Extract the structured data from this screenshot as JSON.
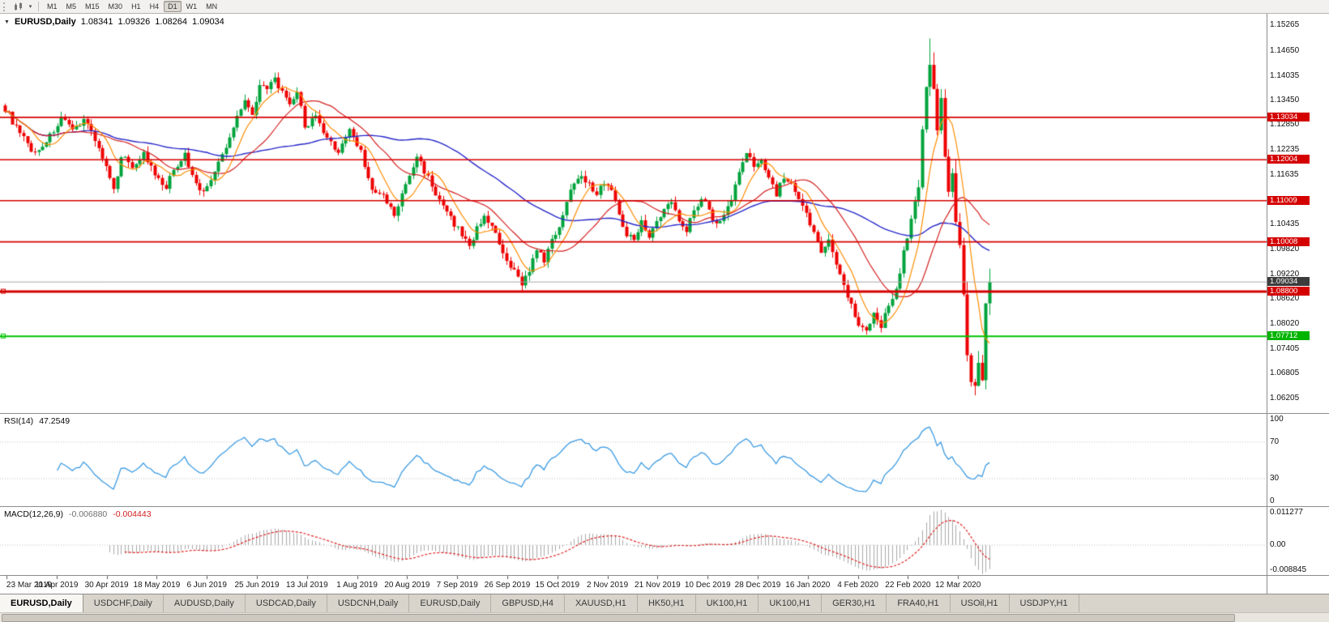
{
  "toolbar": {
    "timeframes": [
      {
        "label": "M1",
        "active": false
      },
      {
        "label": "M5",
        "active": false
      },
      {
        "label": "M15",
        "active": false
      },
      {
        "label": "M30",
        "active": false
      },
      {
        "label": "H1",
        "active": false
      },
      {
        "label": "H4",
        "active": false
      },
      {
        "label": "D1",
        "active": true
      },
      {
        "label": "W1",
        "active": false
      },
      {
        "label": "MN",
        "active": false
      }
    ]
  },
  "chart": {
    "symbol": "EURUSD,Daily",
    "ohlc": {
      "open": "1.08341",
      "high": "1.09326",
      "low": "1.08264",
      "close": "1.09034"
    }
  },
  "price_axis": {
    "labels": [
      "1.15265",
      "1.14650",
      "1.14035",
      "1.13450",
      "1.12850",
      "1.12235",
      "1.11635",
      "1.10435",
      "1.09820",
      "1.09220",
      "1.08620",
      "1.08020",
      "1.07405",
      "1.06805",
      "1.06205"
    ],
    "range": {
      "max": 1.1555,
      "min": 1.0585
    }
  },
  "levels": {
    "resistance": [
      {
        "label": "1.13034",
        "price": 1.13034,
        "width": 1.6
      },
      {
        "label": "1.12004",
        "price": 1.12004,
        "width": 1.6
      },
      {
        "label": "1.11009",
        "price": 1.11009,
        "width": 1.6
      },
      {
        "label": "1.10008",
        "price": 1.10008,
        "width": 1.6
      },
      {
        "label": "1.08800",
        "price": 1.088,
        "width": 3
      }
    ],
    "support": {
      "label": "1.07712",
      "price": 1.07712,
      "width": 2
    },
    "current": {
      "label": "1.09034",
      "price": 1.09034
    }
  },
  "rsi": {
    "name": "RSI(14)",
    "value": "47.2549",
    "scale": [
      {
        "label": "100",
        "value": 100
      },
      {
        "label": "70",
        "value": 70
      },
      {
        "label": "30",
        "value": 30
      },
      {
        "label": "0",
        "value": 0
      }
    ],
    "guides": [
      70,
      30
    ]
  },
  "macd": {
    "name": "MACD(12,26,9)",
    "value_main": "-0.006880",
    "value_signal": "-0.004443",
    "scale": [
      {
        "label": "0.011277",
        "value": 0.011277
      },
      {
        "label": "0.00",
        "value": 0
      },
      {
        "label": "-0.008845",
        "value": -0.008845
      }
    ],
    "range": {
      "max": 0.0118,
      "min": -0.0095
    }
  },
  "time_axis": {
    "labels": [
      "23 Mar 2019",
      "11 Apr 2019",
      "30 Apr 2019",
      "18 May 2019",
      "6 Jun 2019",
      "25 Jun 2019",
      "13 Jul 2019",
      "1 Aug 2019",
      "20 Aug 2019",
      "7 Sep 2019",
      "26 Sep 2019",
      "15 Oct 2019",
      "2 Nov 2019",
      "21 Nov 2019",
      "10 Dec 2019",
      "28 Dec 2019",
      "16 Jan 2020",
      "4 Feb 2020",
      "22 Feb 2020",
      "12 Mar 2020"
    ]
  },
  "tabs": [
    {
      "label": "EURUSD,Daily",
      "active": true
    },
    {
      "label": "USDCHF,Daily",
      "active": false
    },
    {
      "label": "AUDUSD,Daily",
      "active": false
    },
    {
      "label": "USDCAD,Daily",
      "active": false
    },
    {
      "label": "USDCNH,Daily",
      "active": false
    },
    {
      "label": "EURUSD,Daily",
      "active": false
    },
    {
      "label": "GBPUSD,H4",
      "active": false
    },
    {
      "label": "XAUUSD,H1",
      "active": false
    },
    {
      "label": "HK50,H1",
      "active": false
    },
    {
      "label": "UK100,H1",
      "active": false
    },
    {
      "label": "UK100,H1",
      "active": false
    },
    {
      "label": "GER30,H1",
      "active": false
    },
    {
      "label": "FRA40,H1",
      "active": false
    },
    {
      "label": "USOil,H1",
      "active": false
    },
    {
      "label": "USDJPY,H1",
      "active": false
    }
  ],
  "colors": {
    "up_candle": "#00a33c",
    "down_candle": "#ee0000",
    "ma_fast": "#ff8c00",
    "ma_mid": "#d42020",
    "ma_slow": "#2626c9",
    "level_red": "#d40000",
    "level_green": "#00c400",
    "current_line": "#a8a8a8",
    "rsi_line": "#3b9ae1",
    "macd_hist": "#a8a8a8",
    "macd_signal": "#e02020",
    "guide_dotted": "#c0c0c0"
  },
  "chart_data": {
    "type": "candlestick",
    "symbol": "EURUSD",
    "timeframe": "Daily",
    "candle_count": 264,
    "last_ohlc": {
      "open": 1.08341,
      "high": 1.09326,
      "low": 1.08264,
      "close": 1.09034
    },
    "close_anchors": [
      [
        0,
        1.1325
      ],
      [
        4,
        1.1262
      ],
      [
        8,
        1.1215
      ],
      [
        12,
        1.1258
      ],
      [
        15,
        1.13
      ],
      [
        18,
        1.1268
      ],
      [
        21,
        1.1302
      ],
      [
        24,
        1.1252
      ],
      [
        27,
        1.118
      ],
      [
        29,
        1.1122
      ],
      [
        31,
        1.1212
      ],
      [
        34,
        1.1185
      ],
      [
        37,
        1.1215
      ],
      [
        40,
        1.1162
      ],
      [
        43,
        1.1128
      ],
      [
        45,
        1.118
      ],
      [
        48,
        1.1212
      ],
      [
        50,
        1.1162
      ],
      [
        53,
        1.1118
      ],
      [
        56,
        1.1172
      ],
      [
        58,
        1.121
      ],
      [
        60,
        1.1252
      ],
      [
        62,
        1.1308
      ],
      [
        64,
        1.1348
      ],
      [
        66,
        1.1308
      ],
      [
        68,
        1.1388
      ],
      [
        70,
        1.1368
      ],
      [
        72,
        1.1398
      ],
      [
        74,
        1.1362
      ],
      [
        76,
        1.1328
      ],
      [
        78,
        1.1368
      ],
      [
        80,
        1.1282
      ],
      [
        83,
        1.1302
      ],
      [
        86,
        1.1248
      ],
      [
        89,
        1.1222
      ],
      [
        92,
        1.1272
      ],
      [
        95,
        1.1222
      ],
      [
        98,
        1.1122
      ],
      [
        101,
        1.1112
      ],
      [
        104,
        1.1065
      ],
      [
        107,
        1.1138
      ],
      [
        110,
        1.1208
      ],
      [
        113,
        1.1158
      ],
      [
        116,
        1.1098
      ],
      [
        119,
        1.1058
      ],
      [
        122,
        1.1018
      ],
      [
        124,
        1.0992
      ],
      [
        126,
        1.1032
      ],
      [
        128,
        1.1068
      ],
      [
        130,
        1.1038
      ],
      [
        132,
        1.0992
      ],
      [
        134,
        1.0948
      ],
      [
        136,
        1.0928
      ],
      [
        138,
        1.0902
      ],
      [
        140,
        1.0932
      ],
      [
        142,
        1.0978
      ],
      [
        144,
        1.0958
      ],
      [
        146,
        1.1002
      ],
      [
        148,
        1.1042
      ],
      [
        150,
        1.1098
      ],
      [
        152,
        1.1148
      ],
      [
        154,
        1.1168
      ],
      [
        156,
        1.1138
      ],
      [
        158,
        1.1118
      ],
      [
        160,
        1.1148
      ],
      [
        162,
        1.1128
      ],
      [
        164,
        1.1068
      ],
      [
        166,
        1.1022
      ],
      [
        168,
        1.1002
      ],
      [
        170,
        1.1058
      ],
      [
        172,
        1.1012
      ],
      [
        174,
        1.1048
      ],
      [
        176,
        1.1078
      ],
      [
        178,
        1.1098
      ],
      [
        180,
        1.1058
      ],
      [
        182,
        1.1032
      ],
      [
        184,
        1.1078
      ],
      [
        186,
        1.1108
      ],
      [
        188,
        1.1078
      ],
      [
        190,
        1.1042
      ],
      [
        192,
        1.1068
      ],
      [
        194,
        1.1108
      ],
      [
        196,
        1.1168
      ],
      [
        198,
        1.1218
      ],
      [
        200,
        1.1182
      ],
      [
        202,
        1.1208
      ],
      [
        204,
        1.1158
      ],
      [
        206,
        1.1118
      ],
      [
        208,
        1.1158
      ],
      [
        210,
        1.1138
      ],
      [
        212,
        1.1098
      ],
      [
        214,
        1.1068
      ],
      [
        216,
        1.1022
      ],
      [
        218,
        1.0982
      ],
      [
        220,
        1.1002
      ],
      [
        222,
        1.0948
      ],
      [
        224,
        1.0898
      ],
      [
        226,
        1.0848
      ],
      [
        228,
        1.0802
      ],
      [
        230,
        1.0786
      ],
      [
        232,
        1.0832
      ],
      [
        234,
        1.0792
      ],
      [
        236,
        1.0852
      ],
      [
        238,
        1.0882
      ],
      [
        240,
        1.0982
      ],
      [
        242,
        1.1052
      ],
      [
        244,
        1.1142
      ],
      [
        245,
        1.1282
      ],
      [
        246,
        1.1362
      ],
      [
        247,
        1.1448
      ],
      [
        248,
        1.1362
      ],
      [
        249,
        1.1282
      ],
      [
        250,
        1.1338
      ],
      [
        251,
        1.1202
      ],
      [
        252,
        1.1132
      ],
      [
        253,
        1.1178
      ],
      [
        254,
        1.1052
      ],
      [
        255,
        1.0992
      ],
      [
        256,
        1.0862
      ],
      [
        257,
        1.0722
      ],
      [
        258,
        1.0662
      ],
      [
        259,
        1.0642
      ],
      [
        260,
        1.0702
      ],
      [
        261,
        1.0662
      ],
      [
        262,
        1.0832
      ],
      [
        263,
        1.0903
      ]
    ],
    "wick_overrides": [
      [
        72,
        1.1412,
        null
      ],
      [
        138,
        null,
        1.0879
      ],
      [
        247,
        1.1495,
        null
      ],
      [
        259,
        null,
        1.0636
      ]
    ],
    "moving_averages": [
      {
        "period": 8
      },
      {
        "period": 21
      },
      {
        "period": 55
      }
    ],
    "indicators": {
      "rsi_period": 14,
      "macd": [
        12,
        26,
        9
      ]
    }
  }
}
